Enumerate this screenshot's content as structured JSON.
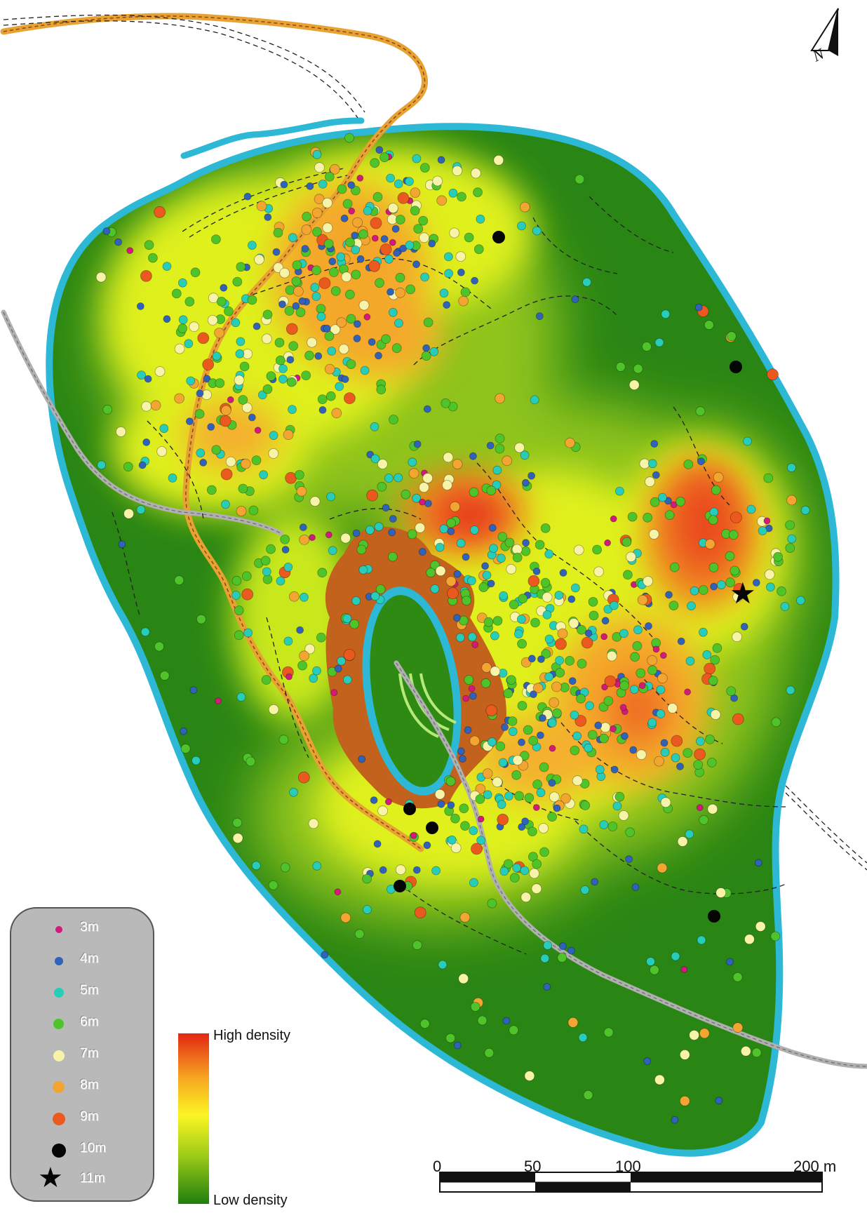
{
  "north_arrow": {
    "label": "N",
    "icon": "north-arrow-icon"
  },
  "legend": {
    "items": [
      {
        "label": "3m",
        "color": "#d21a7a",
        "shape": "dot"
      },
      {
        "label": "4m",
        "color": "#2f62b8",
        "shape": "dot"
      },
      {
        "label": "5m",
        "color": "#27cdb9",
        "shape": "dot"
      },
      {
        "label": "6m",
        "color": "#4fc42a",
        "shape": "dot"
      },
      {
        "label": "7m",
        "color": "#f7f4a8",
        "shape": "dot"
      },
      {
        "label": "8m",
        "color": "#f2a631",
        "shape": "dot"
      },
      {
        "label": "9m",
        "color": "#ea5a1e",
        "shape": "dot"
      },
      {
        "label": "10m",
        "color": "#050505",
        "shape": "dot"
      },
      {
        "label": "11m",
        "color": "#050505",
        "shape": "star"
      }
    ]
  },
  "density_ramp": {
    "high_label": "High density",
    "low_label": "Low density",
    "colors": [
      "#e32612",
      "#f7a622",
      "#fbf523",
      "#9ccb18",
      "#1f7e0e"
    ]
  },
  "scale_bar": {
    "labels": [
      "0",
      "50",
      "100",
      "200 m"
    ],
    "unit": "m"
  },
  "colors": {
    "water": "#2db8d6",
    "orange_path": "#e89a2a",
    "grey_path": "#bdbdbd",
    "lake_rim": "#c2621c"
  }
}
